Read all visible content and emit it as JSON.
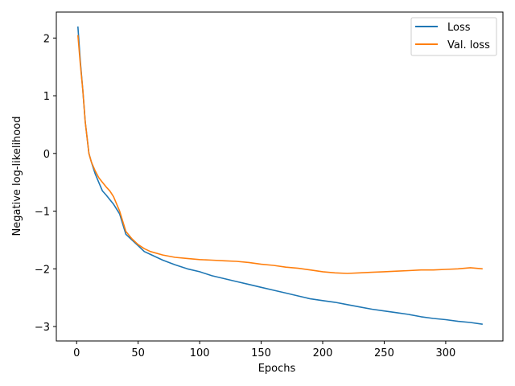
{
  "chart_data": {
    "type": "line",
    "xlabel": "Epochs",
    "ylabel": "Negative log-likelihood",
    "xlim": [
      -16.5,
      346.5
    ],
    "ylim": [
      -3.25,
      2.45
    ],
    "xticks": [
      0,
      50,
      100,
      150,
      200,
      250,
      300
    ],
    "yticks": [
      -3,
      -2,
      -1,
      0,
      1,
      2
    ],
    "grid": false,
    "legend_position": "top-right",
    "series": [
      {
        "name": "Loss",
        "color": "#1f77b4",
        "x": [
          1,
          3,
          5,
          7,
          10,
          12,
          15,
          18,
          21,
          24,
          27,
          30,
          35,
          40,
          45,
          50,
          55,
          60,
          70,
          80,
          90,
          100,
          110,
          120,
          130,
          140,
          150,
          160,
          170,
          180,
          190,
          200,
          210,
          220,
          230,
          240,
          250,
          260,
          270,
          280,
          290,
          300,
          310,
          320,
          330
        ],
        "y": [
          2.2,
          1.6,
          1.1,
          0.55,
          0.0,
          -0.15,
          -0.35,
          -0.5,
          -0.65,
          -0.72,
          -0.8,
          -0.88,
          -1.05,
          -1.4,
          -1.5,
          -1.6,
          -1.7,
          -1.75,
          -1.85,
          -1.93,
          -2.0,
          -2.05,
          -2.12,
          -2.17,
          -2.22,
          -2.27,
          -2.32,
          -2.37,
          -2.42,
          -2.47,
          -2.52,
          -2.55,
          -2.58,
          -2.62,
          -2.66,
          -2.7,
          -2.73,
          -2.76,
          -2.79,
          -2.83,
          -2.86,
          -2.88,
          -2.91,
          -2.93,
          -2.96
        ]
      },
      {
        "name": "Val. loss",
        "color": "#ff7f0e",
        "x": [
          1,
          3,
          5,
          7,
          10,
          12,
          15,
          18,
          21,
          24,
          27,
          30,
          35,
          40,
          45,
          50,
          55,
          60,
          70,
          80,
          90,
          100,
          110,
          120,
          130,
          140,
          150,
          160,
          170,
          180,
          190,
          200,
          210,
          220,
          230,
          240,
          250,
          260,
          270,
          280,
          290,
          300,
          310,
          320,
          330
        ],
        "y": [
          2.05,
          1.55,
          1.1,
          0.55,
          0.0,
          -0.15,
          -0.3,
          -0.42,
          -0.5,
          -0.58,
          -0.65,
          -0.75,
          -1.0,
          -1.35,
          -1.48,
          -1.58,
          -1.65,
          -1.7,
          -1.76,
          -1.8,
          -1.82,
          -1.84,
          -1.85,
          -1.86,
          -1.87,
          -1.89,
          -1.92,
          -1.94,
          -1.97,
          -1.99,
          -2.02,
          -2.05,
          -2.07,
          -2.08,
          -2.07,
          -2.06,
          -2.05,
          -2.04,
          -2.03,
          -2.02,
          -2.02,
          -2.01,
          -2.0,
          -1.98,
          -2.0
        ]
      }
    ]
  }
}
